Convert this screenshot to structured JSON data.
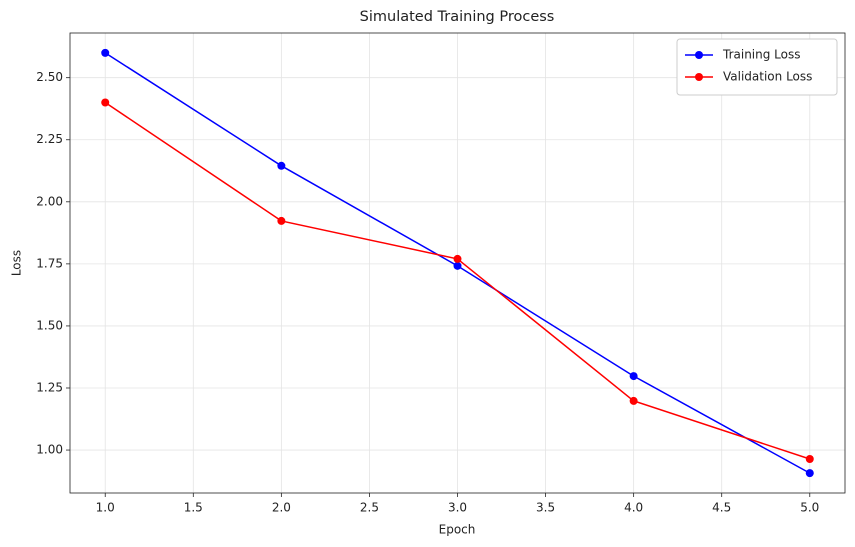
{
  "chart_data": {
    "type": "line",
    "title": "Simulated Training Process",
    "x_label": "Epoch",
    "y_label": "Loss",
    "x": [
      1,
      2,
      3,
      4,
      5
    ],
    "series": [
      {
        "name": "Training Loss",
        "color": "#0000ff",
        "values": [
          2.6,
          2.145,
          1.742,
          1.298,
          0.907
        ]
      },
      {
        "name": "Validation Loss",
        "color": "#ff0000",
        "values": [
          2.4,
          1.923,
          1.77,
          1.198,
          0.964
        ]
      }
    ],
    "xlim": [
      0.8,
      5.2
    ],
    "xticks": [
      {
        "value": 1,
        "label": "1.0"
      },
      {
        "value": 1.5,
        "label": "1.5"
      },
      {
        "value": 2,
        "label": "2.0"
      },
      {
        "value": 2.5,
        "label": "2.5"
      },
      {
        "value": 3,
        "label": "3.0"
      },
      {
        "value": 3.5,
        "label": "3.5"
      },
      {
        "value": 4,
        "label": "4.0"
      },
      {
        "value": 4.5,
        "label": "4.5"
      },
      {
        "value": 5,
        "label": "5.0"
      }
    ],
    "ylim": [
      0.827,
      2.68
    ],
    "yticks": [
      {
        "value": 1,
        "label": "1.00"
      },
      {
        "value": 1.25,
        "label": "1.25"
      },
      {
        "value": 1.5,
        "label": "1.50"
      },
      {
        "value": 1.75,
        "label": "1.75"
      },
      {
        "value": 2,
        "label": "2.00"
      },
      {
        "value": 2.25,
        "label": "2.25"
      },
      {
        "value": 2.5,
        "label": "2.50"
      }
    ],
    "grid": true,
    "legend": "upper right"
  }
}
